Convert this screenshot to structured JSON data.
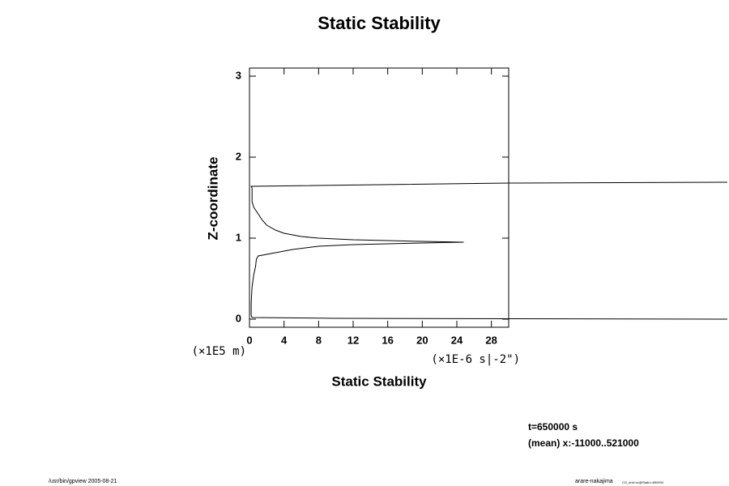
{
  "chart_data": {
    "type": "line",
    "title": "Static Stability",
    "x_label": "Static Stability",
    "y_label": "Z-coordinate",
    "x_unit": "(×1E-6 s|-2\")",
    "y_unit": "(×1E5 m)",
    "annotations": [
      "t=650000 s",
      "(mean) x:-11000..521000"
    ],
    "footer_left": "/usr/bin/gpview 2005-08-21",
    "footer_right": "arare-nakajima",
    "footer_right_sub": "CO_snel.nc@Stab,t=650000",
    "xlim": [
      0,
      30
    ],
    "ylim": [
      -0.1,
      3.1
    ],
    "xticks": [
      0,
      4,
      8,
      12,
      16,
      20,
      24,
      28
    ],
    "yticks": [
      0,
      1,
      2,
      3
    ],
    "x": [
      55.3,
      30,
      0.2,
      0.3,
      0.3,
      0.5,
      1,
      1.5,
      2,
      3,
      4,
      6,
      8,
      12,
      16,
      20,
      24.8,
      20,
      16,
      12,
      8,
      5,
      3,
      1,
      0.8,
      0.7,
      0.5,
      0.3,
      0.2,
      0.2,
      0.3,
      10,
      30,
      55.3
    ],
    "series": [
      {
        "color": "#000000",
        "values": [
          1.69,
          1.68,
          1.64,
          1.62,
          1.45,
          1.38,
          1.3,
          1.22,
          1.16,
          1.1,
          1.06,
          1.02,
          1.0,
          0.98,
          0.97,
          0.96,
          0.95,
          0.94,
          0.93,
          0.92,
          0.9,
          0.86,
          0.82,
          0.78,
          0.74,
          0.65,
          0.55,
          0.4,
          0.2,
          0.05,
          0.02,
          0.01,
          0.005,
          0.0
        ]
      }
    ]
  }
}
